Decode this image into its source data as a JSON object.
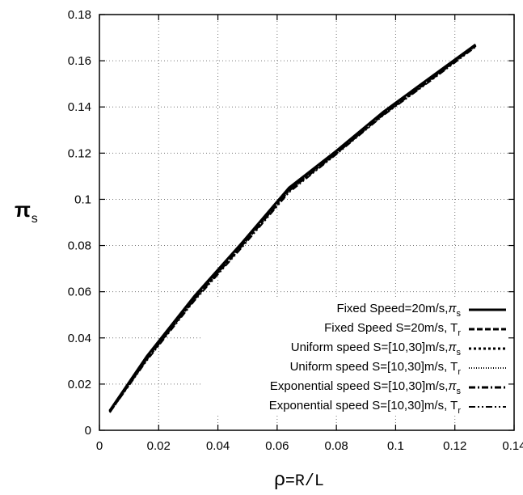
{
  "chart_data": {
    "type": "line",
    "title": "",
    "xlabel": {
      "symbol": "ρ",
      "rest": "=R/L"
    },
    "ylabel": {
      "symbol": "π",
      "subscript": "s"
    },
    "xlim": [
      0,
      0.14
    ],
    "ylim": [
      0,
      0.18
    ],
    "x_ticks": [
      0,
      0.02,
      0.04,
      0.06,
      0.08,
      0.1,
      0.12,
      0.14
    ],
    "x_tick_labels": [
      "0",
      "0.02",
      "0.04",
      "0.06",
      "0.08",
      "0.1",
      "0.12",
      "0.14"
    ],
    "y_ticks": [
      0,
      0.02,
      0.04,
      0.06,
      0.08,
      0.1,
      0.12,
      0.14,
      0.16,
      0.18
    ],
    "y_tick_labels": [
      "0",
      "0.02",
      "0.04",
      "0.06",
      "0.08",
      "0.1",
      "0.12",
      "0.14",
      "0.16",
      "0.18"
    ],
    "grid": true,
    "legend_position": "bottom-right",
    "x": [
      0.0035,
      0.016,
      0.032,
      0.048,
      0.064,
      0.08,
      0.096,
      0.112,
      0.127
    ],
    "series": [
      {
        "name": "Fixed Speed=20m/s,",
        "sym": "π",
        "sub": "s",
        "dash": "solid",
        "width": 3,
        "values": [
          0.0085,
          0.032,
          0.058,
          0.081,
          0.105,
          0.121,
          0.138,
          0.153,
          0.167
        ]
      },
      {
        "name": "Fixed Speed S=20m/s, T",
        "sym": "",
        "sub": "r",
        "dash": "dashed",
        "width": 3,
        "values": [
          0.0083,
          0.0315,
          0.0575,
          0.0805,
          0.1045,
          0.1205,
          0.1375,
          0.1525,
          0.1665
        ]
      },
      {
        "name": "Uniform speed S=[10,30]m/s,",
        "sym": "π",
        "sub": "s",
        "dash": "dotted",
        "width": 3,
        "values": [
          0.008,
          0.031,
          0.057,
          0.08,
          0.104,
          0.1202,
          0.1372,
          0.1522,
          0.1668
        ]
      },
      {
        "name": "Uniform speed S=[10,30]m/s, T",
        "sym": "",
        "sub": "r",
        "dash": "finedot",
        "width": 2,
        "values": [
          0.0078,
          0.0305,
          0.0565,
          0.0795,
          0.1035,
          0.1198,
          0.1368,
          0.1518,
          0.1662
        ]
      },
      {
        "name": "Exponential speed S=[10,30]m/s,",
        "sym": "π",
        "sub": "s",
        "dash": "dashdot",
        "width": 3,
        "values": [
          0.0081,
          0.031,
          0.0568,
          0.0798,
          0.1038,
          0.12,
          0.137,
          0.152,
          0.1667
        ]
      },
      {
        "name": "Exponential speed S=[10,30]m/s, T",
        "sym": "",
        "sub": "r",
        "dash": "dashdotdot",
        "width": 2,
        "values": [
          0.0077,
          0.0302,
          0.056,
          0.079,
          0.103,
          0.1195,
          0.1365,
          0.1515,
          0.166
        ]
      }
    ]
  }
}
